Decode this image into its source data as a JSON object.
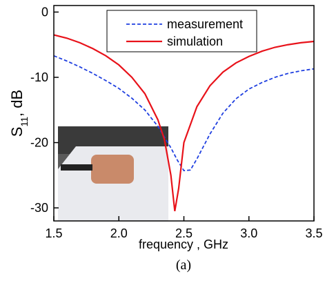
{
  "chart_data": {
    "type": "line",
    "x_label": "frequency , GHz",
    "y_label": [
      "S",
      "11",
      ", dB"
    ],
    "caption": "(a)",
    "xlim": [
      1.5,
      3.5
    ],
    "xticks": [
      1.5,
      {
        "value": 2,
        "label": "2.0"
      },
      2.5,
      {
        "value": 3,
        "label": "3.0"
      },
      3.5
    ],
    "ylim": [
      -32,
      1
    ],
    "yticks": [
      0,
      -10,
      -20,
      -30
    ],
    "series": [
      {
        "name": "measurement",
        "color": "#1f3fe0",
        "dash": true,
        "x": [
          1.5,
          1.6,
          1.7,
          1.8,
          1.9,
          2.0,
          2.1,
          2.2,
          2.3,
          2.4,
          2.45,
          2.5,
          2.55,
          2.6,
          2.7,
          2.8,
          2.9,
          3.0,
          3.1,
          3.2,
          3.3,
          3.4,
          3.5
        ],
        "values": [
          -6.7,
          -7.5,
          -8.4,
          -9.4,
          -10.5,
          -11.7,
          -13.2,
          -15,
          -17.5,
          -20.8,
          -22.7,
          -24.3,
          -24.2,
          -22.5,
          -18.7,
          -15.5,
          -13.3,
          -11.8,
          -10.8,
          -10,
          -9.4,
          -9,
          -8.7
        ]
      },
      {
        "name": "simulation",
        "color": "#e8121a",
        "dash": false,
        "x": [
          1.5,
          1.6,
          1.7,
          1.8,
          1.9,
          2.0,
          2.1,
          2.2,
          2.3,
          2.35,
          2.4,
          2.43,
          2.46,
          2.5,
          2.6,
          2.7,
          2.8,
          2.9,
          3.0,
          3.1,
          3.2,
          3.3,
          3.4,
          3.5
        ],
        "values": [
          -3.5,
          -4,
          -4.7,
          -5.6,
          -6.7,
          -8.1,
          -10,
          -12.5,
          -16.5,
          -19.5,
          -25,
          -30.5,
          -27,
          -20,
          -14.5,
          -11.3,
          -9.2,
          -7.8,
          -6.8,
          -6,
          -5.4,
          -5,
          -4.7,
          -4.5
        ]
      }
    ]
  }
}
